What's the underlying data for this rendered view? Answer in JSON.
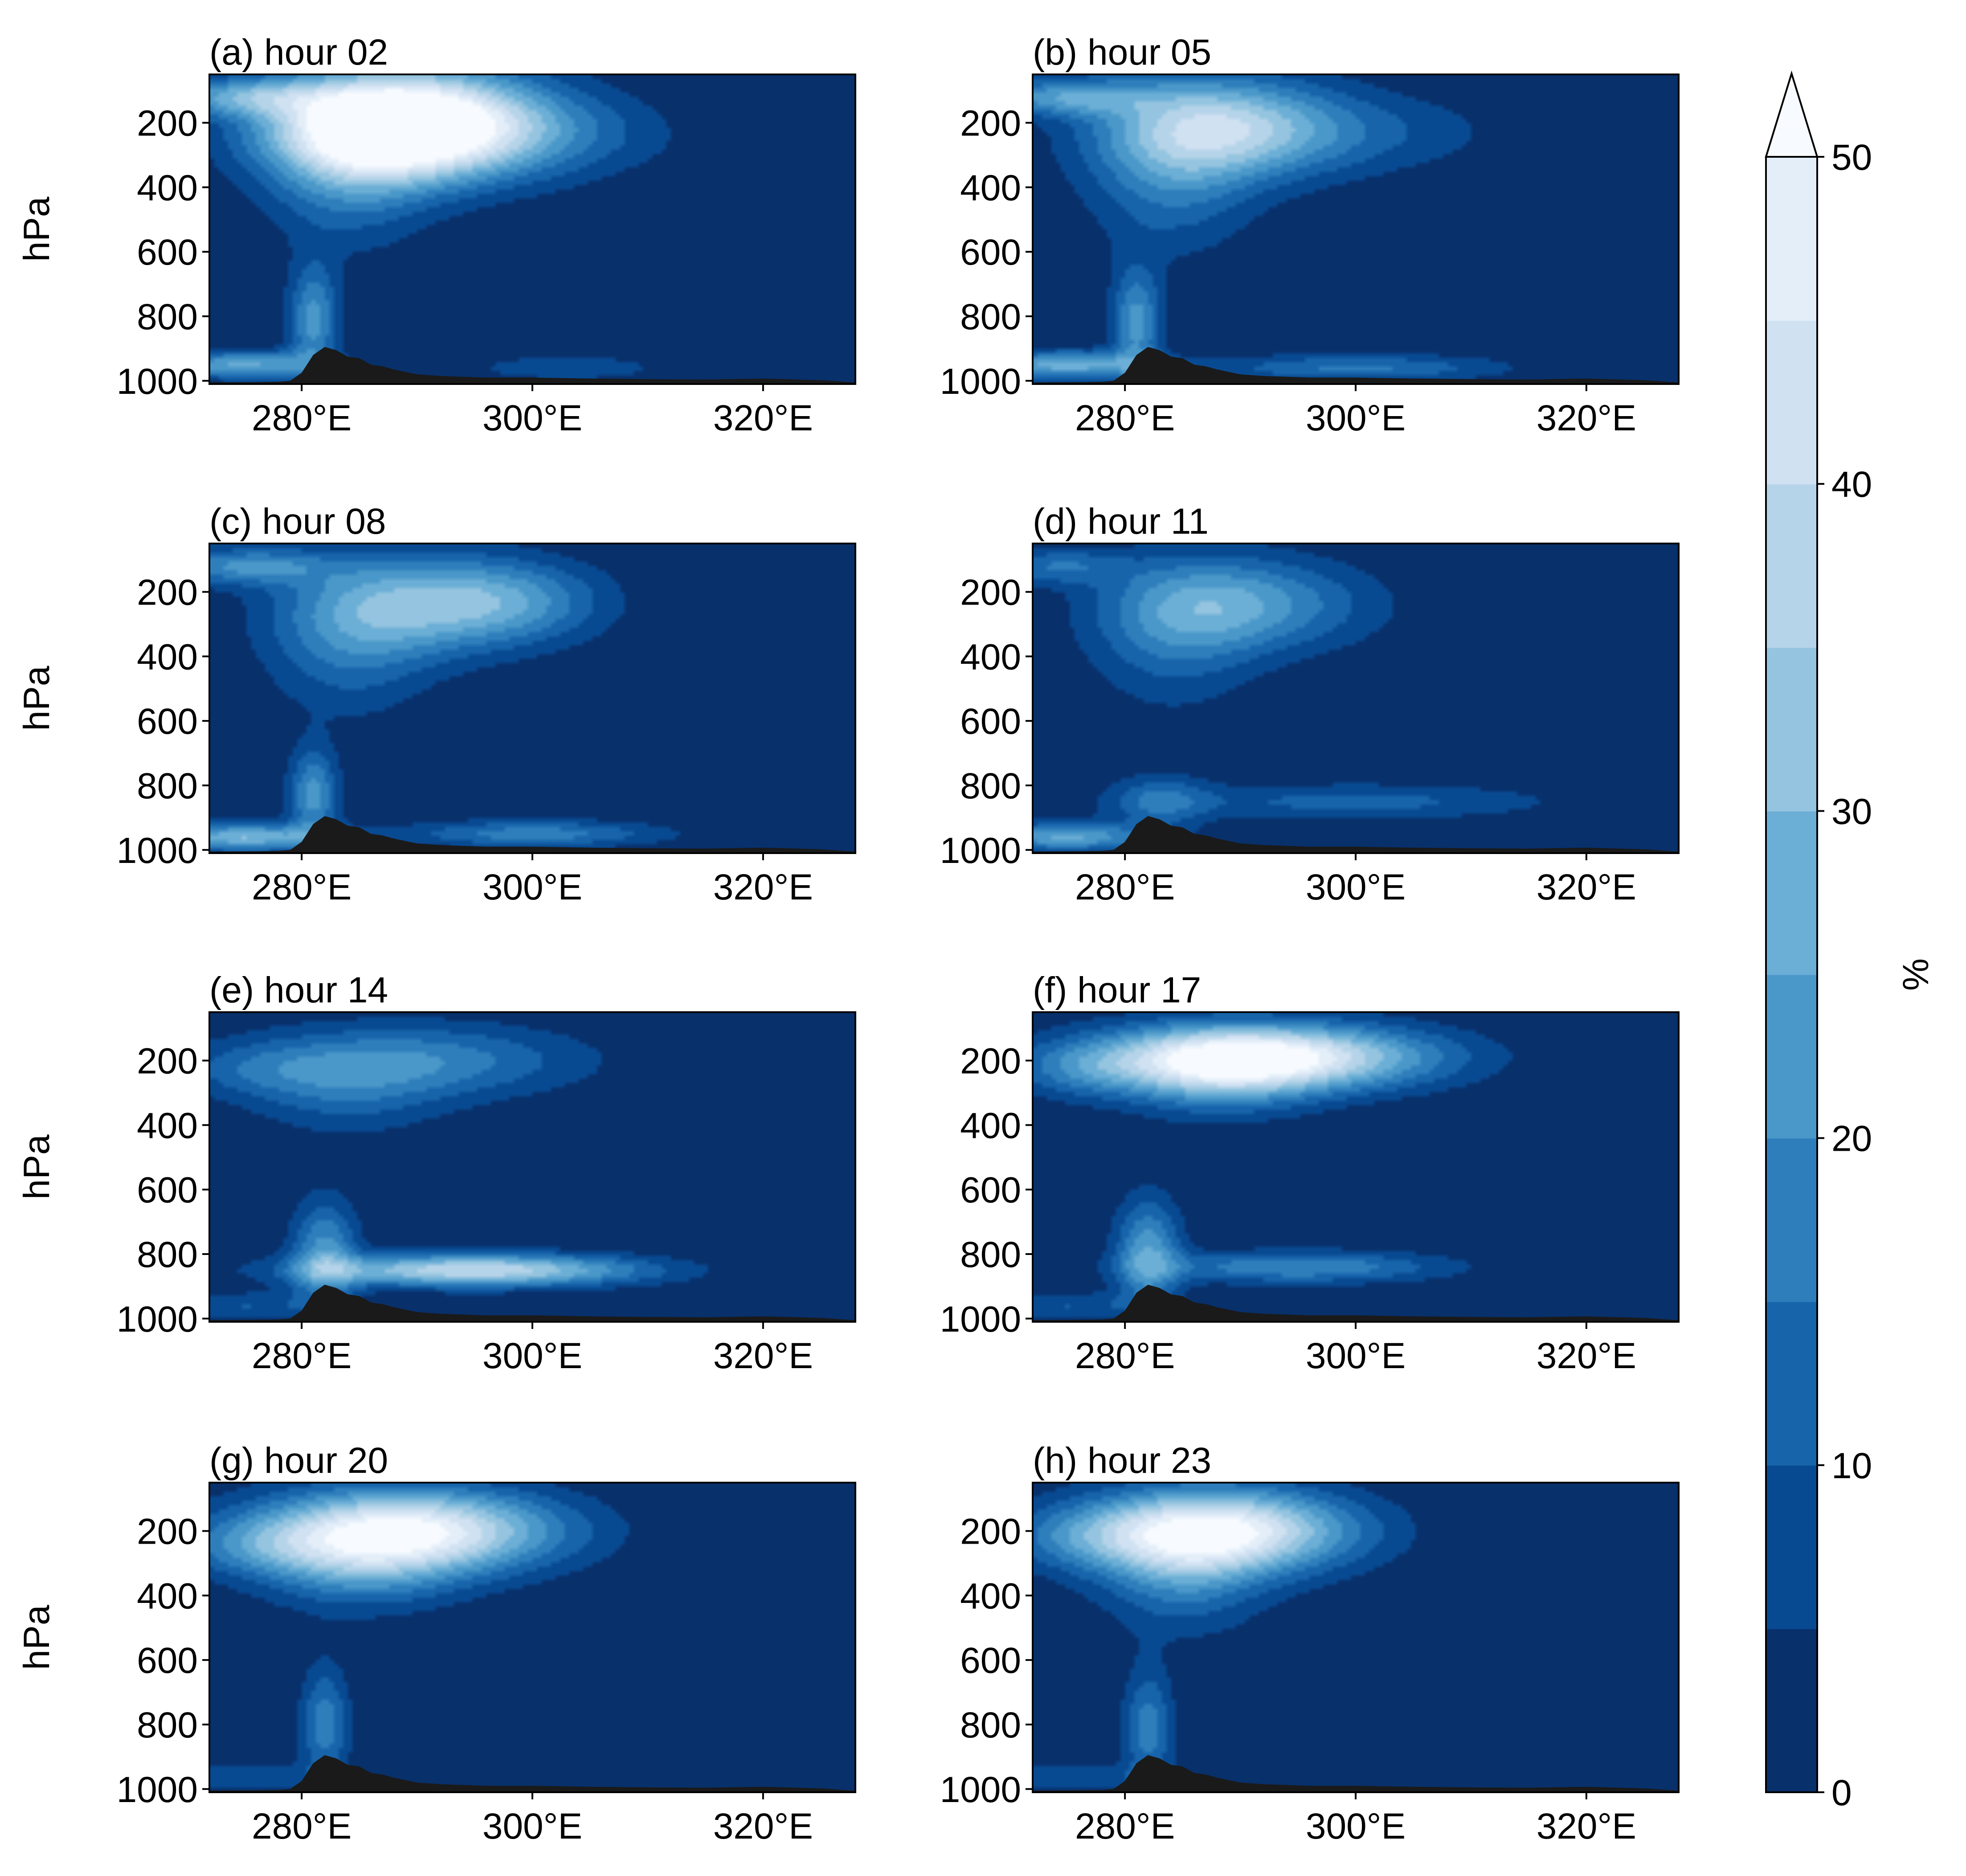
{
  "colors": {
    "background": "#ffffff",
    "terrain": "#1a1a1a",
    "colormap": [
      "#08306b",
      "#08519c",
      "#2171b5",
      "#4292c6",
      "#6baed6",
      "#9ecae1",
      "#c6dbef",
      "#deebf7",
      "#f7fbff"
    ]
  },
  "chart_data": {
    "type": "heatmap",
    "plot_kind": "filled contour (pressure-longitude cross sections)",
    "panel_count": 8,
    "layout": "4 rows x 2 columns, shared colorbar on right",
    "x_axis": {
      "ticks": [
        280,
        300,
        320
      ],
      "tick_labels": [
        "280°E",
        "300°E",
        "320°E"
      ],
      "range": [
        272,
        328
      ]
    },
    "y_axis": {
      "label": "hPa",
      "ticks": [
        200,
        400,
        600,
        800,
        1000
      ],
      "tick_labels": [
        "200",
        "400",
        "600",
        "800",
        "1000"
      ],
      "range": [
        50,
        1010
      ],
      "inverted": true
    },
    "colorbar": {
      "label": "%",
      "levels": [
        0,
        5,
        10,
        15,
        20,
        25,
        30,
        35,
        40,
        45,
        50
      ],
      "ticks": [
        0,
        10,
        20,
        30,
        40,
        50
      ],
      "tick_labels": [
        "0",
        "10",
        "20",
        "30",
        "40",
        "50"
      ],
      "extend": "max"
    },
    "terrain": {
      "lon": [
        272,
        276,
        278,
        279,
        280,
        281,
        282,
        283,
        284,
        285,
        286,
        287,
        288,
        290,
        292,
        296,
        300,
        305,
        310,
        315,
        320,
        325,
        328
      ],
      "p": [
        1005,
        1004,
        1003,
        1000,
        975,
        920,
        895,
        905,
        925,
        930,
        950,
        955,
        965,
        980,
        985,
        990,
        990,
        993,
        995,
        996,
        993,
        998,
        1005
      ]
    },
    "panels": [
      {
        "title": "(a) hour 02",
        "blobs": [
          {
            "lon": 287,
            "p": 210,
            "wlon": 7,
            "wp": 110,
            "v": 50
          },
          {
            "lon": 292,
            "p": 200,
            "wlon": 8,
            "wp": 120,
            "v": 28
          },
          {
            "lon": 284,
            "p": 380,
            "wlon": 5,
            "wp": 150,
            "v": 14
          },
          {
            "lon": 300,
            "p": 240,
            "wlon": 9,
            "wp": 90,
            "v": 9
          },
          {
            "lon": 275,
            "p": 120,
            "wlon": 5,
            "wp": 40,
            "v": 22
          },
          {
            "lon": 281,
            "p": 810,
            "wlon": 1.5,
            "wp": 120,
            "v": 22
          },
          {
            "lon": 275,
            "p": 950,
            "wlon": 5,
            "wp": 30,
            "v": 26
          },
          {
            "lon": 303,
            "p": 960,
            "wlon": 6,
            "wp": 30,
            "v": 9
          }
        ]
      },
      {
        "title": "(b) hour 05",
        "blobs": [
          {
            "lon": 288,
            "p": 215,
            "wlon": 7,
            "wp": 110,
            "v": 34
          },
          {
            "lon": 284,
            "p": 380,
            "wlon": 5,
            "wp": 160,
            "v": 14
          },
          {
            "lon": 300,
            "p": 230,
            "wlon": 9,
            "wp": 90,
            "v": 9
          },
          {
            "lon": 275,
            "p": 120,
            "wlon": 5,
            "wp": 40,
            "v": 22
          },
          {
            "lon": 281,
            "p": 820,
            "wlon": 1.5,
            "wp": 120,
            "v": 22
          },
          {
            "lon": 275,
            "p": 950,
            "wlon": 5,
            "wp": 30,
            "v": 28
          },
          {
            "lon": 300,
            "p": 960,
            "wlon": 9,
            "wp": 30,
            "v": 16
          }
        ]
      },
      {
        "title": "(c) hour 08",
        "blobs": [
          {
            "lon": 289,
            "p": 240,
            "wlon": 7,
            "wp": 110,
            "v": 24
          },
          {
            "lon": 298,
            "p": 230,
            "wlon": 6,
            "wp": 90,
            "v": 18
          },
          {
            "lon": 284,
            "p": 380,
            "wlon": 5,
            "wp": 150,
            "v": 12
          },
          {
            "lon": 275,
            "p": 120,
            "wlon": 5,
            "wp": 40,
            "v": 20
          },
          {
            "lon": 281,
            "p": 830,
            "wlon": 1.5,
            "wp": 100,
            "v": 22
          },
          {
            "lon": 275,
            "p": 960,
            "wlon": 5,
            "wp": 30,
            "v": 30
          },
          {
            "lon": 300,
            "p": 950,
            "wlon": 8,
            "wp": 30,
            "v": 18
          }
        ]
      },
      {
        "title": "(d) hour 11",
        "blobs": [
          {
            "lon": 286,
            "p": 240,
            "wlon": 6,
            "wp": 110,
            "v": 16
          },
          {
            "lon": 293,
            "p": 240,
            "wlon": 7,
            "wp": 100,
            "v": 14
          },
          {
            "lon": 284,
            "p": 380,
            "wlon": 5,
            "wp": 150,
            "v": 9
          },
          {
            "lon": 274,
            "p": 120,
            "wlon": 4,
            "wp": 40,
            "v": 14
          },
          {
            "lon": 283,
            "p": 850,
            "wlon": 3,
            "wp": 60,
            "v": 14
          },
          {
            "lon": 300,
            "p": 850,
            "wlon": 12,
            "wp": 40,
            "v": 12
          },
          {
            "lon": 275,
            "p": 960,
            "wlon": 5,
            "wp": 30,
            "v": 26
          }
        ]
      },
      {
        "title": "(e) hour 14",
        "blobs": [
          {
            "lon": 290,
            "p": 200,
            "wlon": 10,
            "wp": 80,
            "v": 18
          },
          {
            "lon": 284,
            "p": 300,
            "wlon": 6,
            "wp": 100,
            "v": 10
          },
          {
            "lon": 276,
            "p": 230,
            "wlon": 5,
            "wp": 60,
            "v": 8
          },
          {
            "lon": 282,
            "p": 800,
            "wlon": 2,
            "wp": 120,
            "v": 22
          },
          {
            "lon": 295,
            "p": 850,
            "wlon": 10,
            "wp": 35,
            "v": 40
          },
          {
            "lon": 275,
            "p": 960,
            "wlon": 5,
            "wp": 30,
            "v": 10
          }
        ]
      },
      {
        "title": "(f) hour 17",
        "blobs": [
          {
            "lon": 292,
            "p": 190,
            "wlon": 10,
            "wp": 70,
            "v": 50
          },
          {
            "lon": 288,
            "p": 240,
            "wlon": 6,
            "wp": 90,
            "v": 20
          },
          {
            "lon": 276,
            "p": 230,
            "wlon": 4,
            "wp": 60,
            "v": 10
          },
          {
            "lon": 282,
            "p": 800,
            "wlon": 2,
            "wp": 120,
            "v": 24
          },
          {
            "lon": 295,
            "p": 840,
            "wlon": 9,
            "wp": 35,
            "v": 20
          },
          {
            "lon": 275,
            "p": 960,
            "wlon": 5,
            "wp": 30,
            "v": 10
          }
        ]
      },
      {
        "title": "(g) hour 20",
        "blobs": [
          {
            "lon": 289,
            "p": 200,
            "wlon": 9,
            "wp": 90,
            "v": 50
          },
          {
            "lon": 285,
            "p": 310,
            "wlon": 6,
            "wp": 100,
            "v": 16
          },
          {
            "lon": 276,
            "p": 250,
            "wlon": 5,
            "wp": 60,
            "v": 10
          },
          {
            "lon": 282,
            "p": 800,
            "wlon": 1.5,
            "wp": 130,
            "v": 18
          },
          {
            "lon": 275,
            "p": 960,
            "wlon": 5,
            "wp": 30,
            "v": 10
          }
        ]
      },
      {
        "title": "(h) hour 23",
        "blobs": [
          {
            "lon": 288,
            "p": 200,
            "wlon": 8,
            "wp": 90,
            "v": 50
          },
          {
            "lon": 285,
            "p": 330,
            "wlon": 5,
            "wp": 130,
            "v": 16
          },
          {
            "lon": 276,
            "p": 220,
            "wlon": 5,
            "wp": 70,
            "v": 10
          },
          {
            "lon": 282,
            "p": 810,
            "wlon": 1.5,
            "wp": 130,
            "v": 18
          },
          {
            "lon": 275,
            "p": 960,
            "wlon": 5,
            "wp": 30,
            "v": 10
          }
        ]
      }
    ]
  }
}
